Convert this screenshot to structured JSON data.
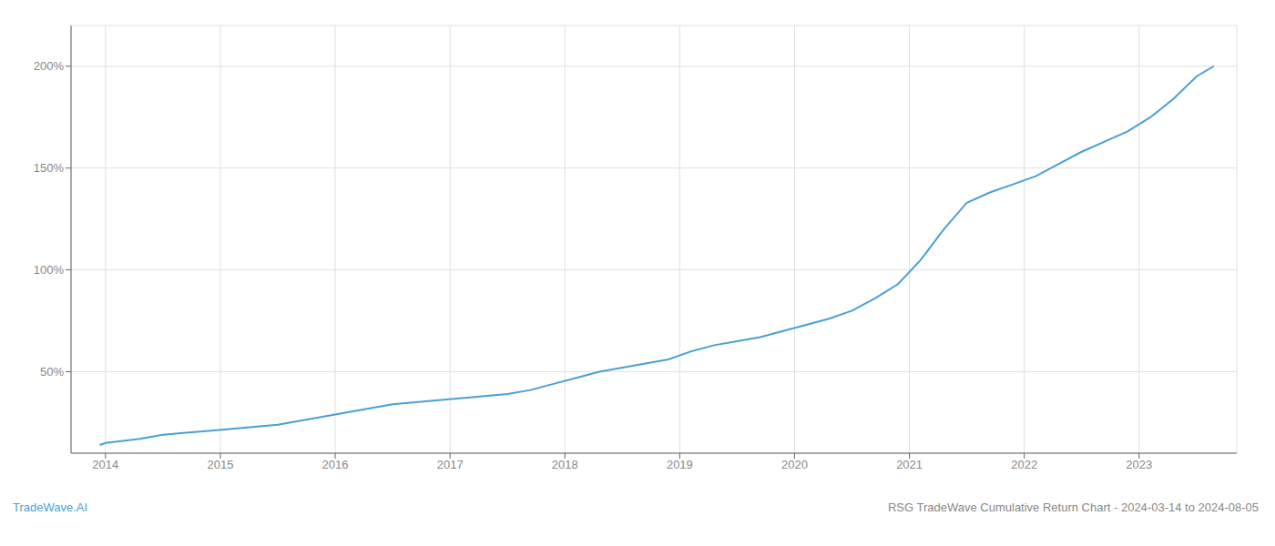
{
  "chart_data": {
    "type": "line",
    "annotations": [
      "TradeWave.AI",
      "RSG TradeWave Cumulative Return Chart - 2024-03-14 to 2024-08-05"
    ],
    "color": "#4a9fd4",
    "grid": true,
    "x": [
      2013.95,
      2014.0,
      2014.15,
      2014.3,
      2014.5,
      2014.7,
      2014.9,
      2015.1,
      2015.3,
      2015.5,
      2015.7,
      2015.9,
      2016.1,
      2016.3,
      2016.5,
      2016.7,
      2016.9,
      2017.1,
      2017.3,
      2017.5,
      2017.7,
      2017.9,
      2018.1,
      2018.3,
      2018.5,
      2018.7,
      2018.9,
      2019.1,
      2019.3,
      2019.5,
      2019.7,
      2019.9,
      2020.1,
      2020.3,
      2020.5,
      2020.7,
      2020.9,
      2021.1,
      2021.3,
      2021.5,
      2021.7,
      2021.9,
      2022.1,
      2022.3,
      2022.5,
      2022.7,
      2022.9,
      2023.1,
      2023.3,
      2023.5,
      2023.65
    ],
    "values": [
      14,
      15,
      16,
      17,
      19,
      20,
      21,
      22,
      23,
      24,
      26,
      28,
      30,
      32,
      34,
      35,
      36,
      37,
      38,
      39,
      41,
      44,
      47,
      50,
      52,
      54,
      56,
      60,
      63,
      65,
      67,
      70,
      73,
      76,
      80,
      86,
      93,
      105,
      120,
      133,
      138,
      142,
      146,
      152,
      158,
      163,
      168,
      175,
      184,
      195,
      200
    ],
    "xlim": [
      2013.7,
      2023.85
    ],
    "xticks": [
      2014,
      2015,
      2016,
      2017,
      2018,
      2019,
      2020,
      2021,
      2022,
      2023
    ],
    "ylim": [
      10,
      220
    ],
    "yticks": [
      {
        "value": 50,
        "label": "50%"
      },
      {
        "value": 100,
        "label": "100%"
      },
      {
        "value": 150,
        "label": "150%"
      },
      {
        "value": 200,
        "label": "200%"
      }
    ]
  }
}
